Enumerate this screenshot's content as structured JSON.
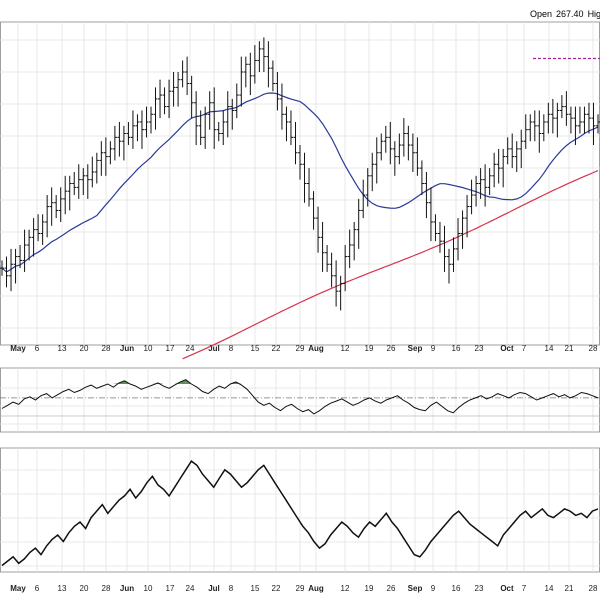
{
  "header": {
    "open_label": "Open",
    "open_value": "267.40",
    "high_label": "High"
  },
  "x_axis_labels": [
    "May",
    "6",
    "13",
    "20",
    "28",
    "Jun",
    "10",
    "17",
    "24",
    "Jul",
    "8",
    "15",
    "22",
    "29",
    "Aug",
    "12",
    "19",
    "26",
    "Sep",
    "9",
    "16",
    "23",
    "Oct",
    "7",
    "14",
    "21",
    "28"
  ],
  "chart_data": [
    {
      "type": "bar",
      "panel": "price",
      "series": [
        {
          "name": "",
          "kind": "ohlc_close",
          "values": [
            228,
            226,
            229,
            231,
            230,
            234,
            236,
            238,
            237,
            240,
            244,
            245,
            243,
            246,
            248,
            250,
            249,
            251,
            252,
            251,
            253,
            256,
            258,
            257,
            259,
            262,
            261,
            263,
            262,
            265,
            266,
            264,
            266,
            268,
            272,
            273,
            270,
            274,
            275,
            277,
            279,
            276,
            271,
            265,
            262,
            268,
            271,
            264,
            263,
            266,
            270,
            269,
            273,
            279,
            281,
            278,
            282,
            285,
            283,
            280,
            276,
            272,
            268,
            266,
            262,
            258,
            255,
            250,
            246,
            241,
            236,
            232,
            229,
            226,
            222,
            224,
            231,
            234,
            238,
            243,
            247,
            252,
            255,
            258,
            261,
            262,
            259,
            257,
            260,
            263,
            260,
            258,
            254,
            250,
            245,
            240,
            237,
            235,
            231,
            229,
            233,
            237,
            241,
            244,
            247,
            250,
            251,
            249,
            252,
            255,
            254,
            257,
            259,
            257,
            259,
            261,
            264,
            266,
            265,
            263,
            266,
            268,
            267,
            269,
            270,
            268,
            267,
            265,
            266,
            268,
            267,
            265,
            266
          ]
        }
      ],
      "overlays": [
        {
          "kind": "moving-average",
          "color": "#2b3a99"
        },
        {
          "kind": "moving-average",
          "color": "#d9334d"
        },
        {
          "kind": "resistance-line",
          "color": "#a020a0",
          "style": "dashed"
        }
      ],
      "grid": true
    },
    {
      "type": "line",
      "panel": "indicator-upper",
      "series": [
        {
          "name": "",
          "values": [
            52,
            55,
            58,
            56,
            61,
            63,
            60,
            64,
            66,
            62,
            65,
            68,
            70,
            67,
            69,
            72,
            74,
            71,
            73,
            75,
            72,
            76,
            78,
            75,
            73,
            70,
            72,
            74,
            76,
            73,
            71,
            74,
            77,
            79,
            75,
            72,
            68,
            66,
            70,
            73,
            71,
            75,
            77,
            74,
            70,
            64,
            58,
            55,
            57,
            53,
            50,
            54,
            56,
            52,
            49,
            51,
            47,
            50,
            54,
            57,
            59,
            61,
            58,
            55,
            57,
            60,
            62,
            59,
            57,
            60,
            62,
            64,
            60,
            57,
            53,
            51,
            50,
            55,
            58,
            54,
            50,
            48,
            53,
            57,
            60,
            62,
            64,
            61,
            63,
            66,
            64,
            62,
            65,
            67,
            66,
            63,
            60,
            62,
            64,
            66,
            63,
            65,
            62,
            64,
            67,
            66,
            64,
            62
          ]
        }
      ],
      "reference_lines": [
        45,
        62
      ],
      "grid": true
    },
    {
      "type": "line",
      "panel": "indicator-lower",
      "series": [
        {
          "name": "",
          "values": [
            38,
            40,
            42,
            39,
            41,
            44,
            46,
            43,
            47,
            50,
            52,
            49,
            53,
            56,
            58,
            55,
            60,
            63,
            66,
            62,
            65,
            68,
            70,
            73,
            69,
            72,
            76,
            79,
            75,
            73,
            70,
            74,
            78,
            82,
            86,
            84,
            80,
            77,
            74,
            78,
            82,
            80,
            77,
            74,
            76,
            79,
            82,
            84,
            80,
            76,
            72,
            68,
            64,
            60,
            56,
            53,
            49,
            46,
            48,
            52,
            55,
            58,
            56,
            53,
            51,
            55,
            58,
            56,
            59,
            62,
            58,
            55,
            51,
            47,
            43,
            42,
            45,
            49,
            52,
            55,
            58,
            61,
            63,
            60,
            57,
            55,
            53,
            51,
            49,
            47,
            52,
            55,
            58,
            61,
            63,
            60,
            62,
            64,
            61,
            60,
            62,
            64,
            63,
            61,
            62,
            60,
            63,
            64
          ]
        }
      ],
      "grid": true
    }
  ]
}
